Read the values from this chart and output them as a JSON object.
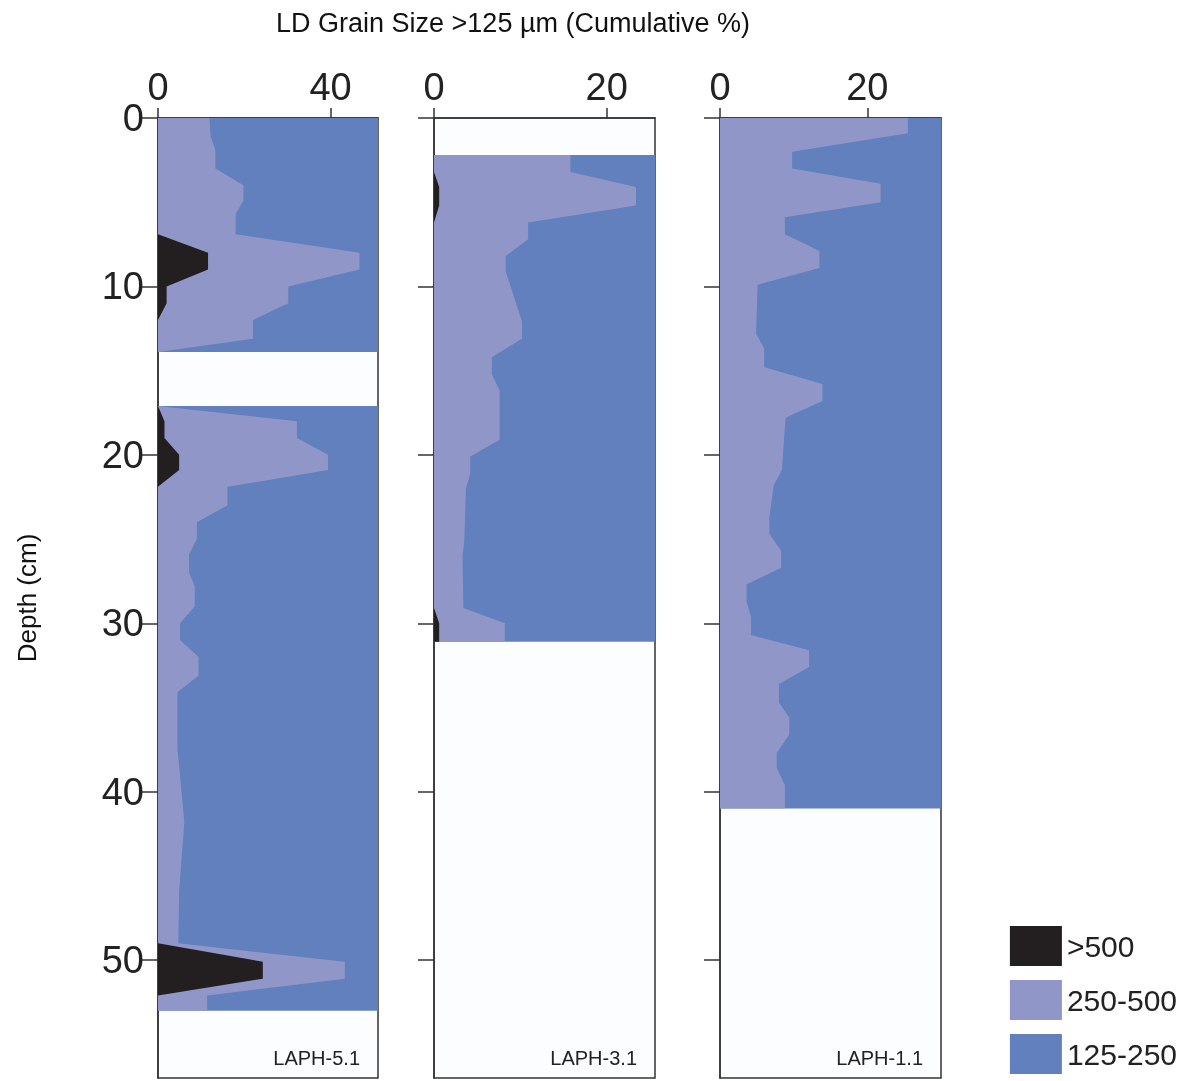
{
  "chart_data": [
    {
      "type": "area",
      "orientation": "horizontal",
      "title": "LD Grain Size >125 µm (Cumulative %)",
      "ylabel": "Depth (cm)",
      "legend": "bottom right",
      "annotations": [
        "LAPH-5.1"
      ],
      "x": [
        0,
        1.1,
        1.9,
        3.0,
        4.0,
        4.9,
        5.7,
        6.9,
        8.0,
        9.0,
        10.0,
        11.0,
        12.0,
        13.1,
        13.9,
        17.1,
        18.0,
        19.0,
        20.0,
        20.9,
        21.9,
        23.0,
        24.0,
        25.0,
        25.9,
        27.0,
        27.8,
        29.0,
        30.0,
        31.0,
        32.0,
        33.1,
        34.1,
        37.4,
        41.8,
        43.5,
        45.9,
        49.0,
        50.1,
        51.1,
        52.1,
        53.0
      ],
      "series": [
        {
          "name": ">500",
          "color": "#231f20",
          "values": [
            0,
            0,
            0,
            0,
            0,
            0,
            0,
            0,
            11.6,
            11.6,
            2.0,
            2.0,
            0,
            0,
            0,
            0,
            1.5,
            1.5,
            4.9,
            4.9,
            0,
            0,
            0,
            0,
            0,
            0,
            0,
            0,
            0,
            0,
            0,
            0,
            0,
            0,
            0,
            0,
            0,
            0,
            24.3,
            24.3,
            0,
            0
          ]
        },
        {
          "name": "250-500",
          "color": "#9097c8",
          "values": [
            11.9,
            12.2,
            13.3,
            13.3,
            19.8,
            19.8,
            18.0,
            18.0,
            46.7,
            46.7,
            30.2,
            30.2,
            22.0,
            22.0,
            0,
            0,
            32.2,
            32.2,
            39.4,
            39.4,
            16.1,
            16.1,
            9.0,
            9.0,
            7.2,
            7.2,
            8.5,
            8.5,
            5.1,
            5.1,
            9.4,
            9.4,
            4.5,
            4.5,
            6.1,
            5.6,
            4.9,
            4.7,
            43.3,
            43.3,
            11.4,
            11.4
          ]
        }
      ],
      "bands": [
        {
          "axis": "y",
          "from": 0,
          "to": 13.9,
          "label": "125-250",
          "color": "#6180bd"
        },
        {
          "axis": "y",
          "from": 17.1,
          "to": 53,
          "color": "#6180bd"
        }
      ],
      "xlim": [
        0,
        51
      ],
      "xticks": [
        0,
        40
      ],
      "ylim": [
        57,
        0
      ],
      "yticks": [
        0,
        10,
        20,
        30,
        40,
        50
      ]
    },
    {
      "type": "area",
      "orientation": "horizontal",
      "annotations": [
        "LAPH-3.1"
      ],
      "tick_labels": "x",
      "x": [
        2.2,
        3.2,
        4.1,
        5.2,
        6.2,
        7.2,
        8.2,
        9.1,
        12.1,
        13.1,
        14.2,
        15.2,
        16.2,
        19.1,
        20.1,
        21.1,
        22.0,
        25.2,
        26.0,
        29.1,
        30.0,
        31.1
      ],
      "series": [
        {
          "color": "#231f20",
          "values": [
            0,
            0,
            0.6,
            0.6,
            0,
            0,
            0,
            0,
            0,
            0,
            0,
            0,
            0,
            0,
            0,
            0,
            0,
            0,
            0,
            0,
            0.6,
            0.6
          ]
        },
        {
          "color": "#9097c8",
          "values": [
            15.8,
            15.8,
            23.4,
            23.4,
            10.9,
            10.9,
            8.3,
            8.3,
            10.2,
            10.2,
            6.7,
            6.7,
            7.6,
            7.6,
            4.2,
            4.2,
            3.7,
            3.5,
            3.3,
            3.4,
            8.2,
            8.2
          ]
        }
      ],
      "bands": [
        {
          "axis": "y",
          "from": 2.2,
          "to": 31.1,
          "color": "#6180bd"
        }
      ],
      "xlim": [
        0,
        25.6
      ],
      "xticks": [
        0,
        20
      ],
      "ylim": [
        57,
        0
      ],
      "yticks": [
        0,
        10,
        20,
        30,
        40,
        50
      ]
    },
    {
      "type": "area",
      "orientation": "horizontal",
      "annotations": [
        "LAPH-1.1"
      ],
      "tick_labels": "x",
      "x": [
        0,
        0.9,
        2.0,
        3.0,
        3.9,
        5.0,
        5.9,
        6.9,
        7.9,
        8.9,
        9.9,
        12.8,
        13.7,
        14.8,
        15.8,
        16.8,
        17.8,
        20.9,
        21.8,
        23.7,
        24.7,
        25.7,
        26.7,
        27.7,
        28.7,
        29.6,
        30.7,
        31.6,
        32.6,
        33.6,
        34.7,
        35.6,
        36.6,
        37.7,
        38.6,
        39.6,
        41.0
      ],
      "series": [
        {
          "color": "#9097c8",
          "values": [
            25.5,
            25.5,
            9.8,
            9.8,
            21.8,
            21.8,
            8.8,
            8.8,
            13.5,
            13.5,
            5.1,
            4.9,
            6.0,
            6.0,
            13.9,
            13.9,
            8.9,
            8.4,
            7.3,
            6.7,
            6.7,
            8.3,
            8.3,
            3.6,
            3.6,
            4.2,
            4.2,
            12.1,
            12.1,
            8.0,
            8.0,
            9.4,
            9.4,
            7.7,
            7.7,
            8.8,
            8.8
          ]
        }
      ],
      "bands": [
        {
          "axis": "y",
          "from": 0,
          "to": 41.0,
          "color": "#6180bd"
        }
      ],
      "xlim": [
        0,
        30
      ],
      "xticks": [
        0,
        20
      ],
      "ylim": [
        57,
        0
      ],
      "yticks": [
        0,
        10,
        20,
        30,
        40,
        50
      ]
    }
  ]
}
